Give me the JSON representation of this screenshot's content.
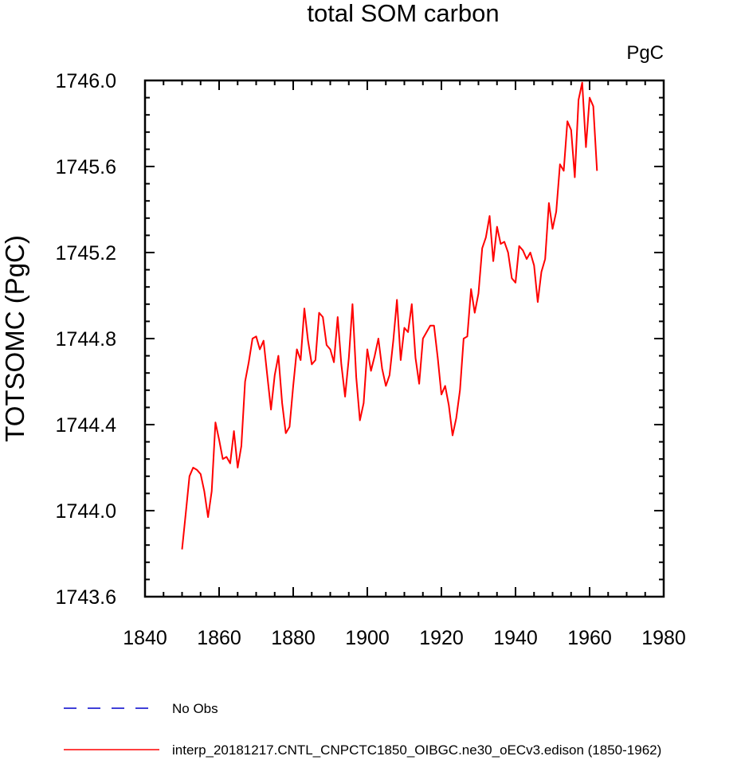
{
  "chart_data": {
    "type": "line",
    "title": "total SOM carbon",
    "units": "PgC",
    "xlabel": "",
    "ylabel": "TOTSOMC  (PgC)",
    "xlim": [
      1840,
      1980
    ],
    "ylim": [
      1743.6,
      1746.0
    ],
    "xticks": [
      1840,
      1860,
      1880,
      1900,
      1920,
      1940,
      1960,
      1980
    ],
    "xtick_labels": [
      "1840",
      "1860",
      "1880",
      "1900",
      "1920",
      "1940",
      "1960",
      "1980"
    ],
    "yticks": [
      1743.6,
      1744.0,
      1744.4,
      1744.8,
      1745.2,
      1745.6,
      1746.0
    ],
    "ytick_labels": [
      "1743.6",
      "1744.0",
      "1744.4",
      "1744.8",
      "1745.2",
      "1745.6",
      "1746.0"
    ],
    "series": [
      {
        "name": "No Obs",
        "color": "#0000cc",
        "dash": "dashed",
        "x": [],
        "y": []
      },
      {
        "name": "interp_20181217.CNTL_CNPCTC1850_OIBGC.ne30_oECv3.edison (1850-1962)",
        "color": "#ff0000",
        "dash": "solid",
        "x": [
          1850,
          1851,
          1852,
          1853,
          1854,
          1855,
          1856,
          1857,
          1858,
          1859,
          1860,
          1861,
          1862,
          1863,
          1864,
          1865,
          1866,
          1867,
          1868,
          1869,
          1870,
          1871,
          1872,
          1873,
          1874,
          1875,
          1876,
          1877,
          1878,
          1879,
          1880,
          1881,
          1882,
          1883,
          1884,
          1885,
          1886,
          1887,
          1888,
          1889,
          1890,
          1891,
          1892,
          1893,
          1894,
          1895,
          1896,
          1897,
          1898,
          1899,
          1900,
          1901,
          1902,
          1903,
          1904,
          1905,
          1906,
          1907,
          1908,
          1909,
          1910,
          1911,
          1912,
          1913,
          1914,
          1915,
          1916,
          1917,
          1918,
          1919,
          1920,
          1921,
          1922,
          1923,
          1924,
          1925,
          1926,
          1927,
          1928,
          1929,
          1930,
          1931,
          1932,
          1933,
          1934,
          1935,
          1936,
          1937,
          1938,
          1939,
          1940,
          1941,
          1942,
          1943,
          1944,
          1945,
          1946,
          1947,
          1948,
          1949,
          1950,
          1951,
          1952,
          1953,
          1954,
          1955,
          1956,
          1957,
          1958,
          1959,
          1960,
          1961,
          1962
        ],
        "y": [
          1743.82,
          1743.99,
          1744.16,
          1744.2,
          1744.19,
          1744.17,
          1744.09,
          1743.97,
          1744.09,
          1744.41,
          1744.33,
          1744.24,
          1744.25,
          1744.22,
          1744.37,
          1744.2,
          1744.3,
          1744.6,
          1744.69,
          1744.8,
          1744.81,
          1744.75,
          1744.79,
          1744.63,
          1744.47,
          1744.63,
          1744.72,
          1744.5,
          1744.36,
          1744.39,
          1744.58,
          1744.75,
          1744.7,
          1744.94,
          1744.79,
          1744.68,
          1744.7,
          1744.92,
          1744.9,
          1744.77,
          1744.75,
          1744.69,
          1744.9,
          1744.68,
          1744.53,
          1744.71,
          1744.96,
          1744.62,
          1744.42,
          1744.5,
          1744.75,
          1744.65,
          1744.72,
          1744.8,
          1744.66,
          1744.58,
          1744.63,
          1744.79,
          1744.98,
          1744.7,
          1744.85,
          1744.83,
          1744.96,
          1744.71,
          1744.59,
          1744.8,
          1744.83,
          1744.86,
          1744.86,
          1744.71,
          1744.54,
          1744.58,
          1744.49,
          1744.35,
          1744.43,
          1744.56,
          1744.8,
          1744.81,
          1745.03,
          1744.92,
          1745.01,
          1745.22,
          1745.27,
          1745.37,
          1745.16,
          1745.32,
          1745.24,
          1745.25,
          1745.2,
          1745.08,
          1745.06,
          1745.23,
          1745.21,
          1745.17,
          1745.2,
          1745.14,
          1744.97,
          1745.11,
          1745.17,
          1745.43,
          1745.31,
          1745.39,
          1745.61,
          1745.58,
          1745.81,
          1745.77,
          1745.55,
          1745.91,
          1745.99,
          1745.69,
          1745.92,
          1745.88,
          1745.58
        ]
      }
    ]
  }
}
